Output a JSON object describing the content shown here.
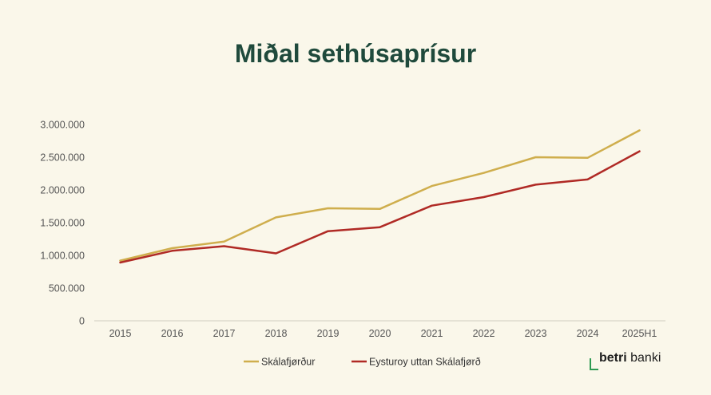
{
  "colors": {
    "background": "#faf7ea",
    "title": "#1f4a3c",
    "axis": "#d0ccc0",
    "series": [
      "#cfae4d",
      "#b02a25"
    ],
    "logo_accent": "#2e9a52"
  },
  "logo": {
    "bold": "betri",
    "regular": "banki"
  },
  "chart_data": {
    "type": "line",
    "title": "Miðal sethúsaprísur",
    "xlabel": "",
    "ylabel": "",
    "categories": [
      "2015",
      "2016",
      "2017",
      "2018",
      "2019",
      "2020",
      "2021",
      "2022",
      "2023",
      "2024",
      "2025H1"
    ],
    "ylim": [
      0,
      3000000
    ],
    "yticks": [
      0,
      500000,
      1000000,
      1500000,
      2000000,
      2500000,
      3000000
    ],
    "ytick_labels": [
      "0",
      "500.000",
      "1.000.000",
      "1.500.000",
      "2.000.000",
      "2.500.000",
      "3.000.000"
    ],
    "grid": false,
    "legend": "bottom",
    "series": [
      {
        "name": "Skálafjørður",
        "values": [
          920000,
          1110000,
          1210000,
          1580000,
          1720000,
          1710000,
          2060000,
          2260000,
          2500000,
          2490000,
          2910000
        ]
      },
      {
        "name": "Eysturoy uttan Skálafjørð",
        "values": [
          890000,
          1070000,
          1140000,
          1030000,
          1370000,
          1430000,
          1760000,
          1890000,
          2080000,
          2160000,
          2590000
        ]
      }
    ]
  }
}
